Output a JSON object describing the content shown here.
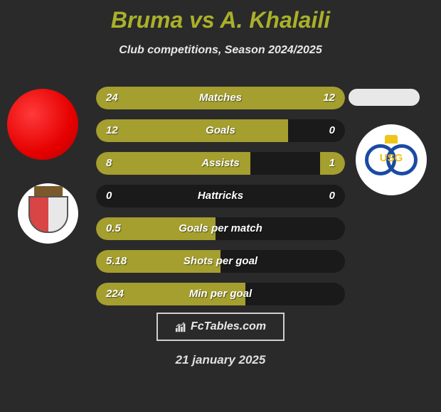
{
  "title": {
    "player1": "Bruma",
    "vs": "vs",
    "player2": "A. Khalaili"
  },
  "subtitle": "Club competitions, Season 2024/2025",
  "colors": {
    "bar_filled": "#a49f2f",
    "bar_empty": "#1a1a1a",
    "background": "#2a2a2a",
    "title_color": "#aab02a",
    "text_light": "#e8e8e8"
  },
  "stats": {
    "rows": [
      {
        "label": "Matches",
        "left": "24",
        "right": "12",
        "left_pct": 74,
        "right_pct": 26
      },
      {
        "label": "Goals",
        "left": "12",
        "right": "0",
        "left_pct": 77,
        "right_pct": 0
      },
      {
        "label": "Assists",
        "left": "8",
        "right": "1",
        "left_pct": 62,
        "right_pct": 10
      },
      {
        "label": "Hattricks",
        "left": "0",
        "right": "0",
        "left_pct": 0,
        "right_pct": 0
      },
      {
        "label": "Goals per match",
        "left": "0.5",
        "right": "",
        "left_pct": 48,
        "right_pct": 0
      },
      {
        "label": "Shots per goal",
        "left": "5.18",
        "right": "",
        "left_pct": 50,
        "right_pct": 0
      },
      {
        "label": "Min per goal",
        "left": "224",
        "right": "",
        "left_pct": 60,
        "right_pct": 0
      }
    ]
  },
  "brand": {
    "text": "FcTables.com",
    "icon_name": "chart-bars-icon"
  },
  "date": "21 january 2025",
  "clubs": {
    "left_name": "SC Braga",
    "right_name": "Union Saint-Gilloise",
    "right_badge_text": "USG"
  }
}
